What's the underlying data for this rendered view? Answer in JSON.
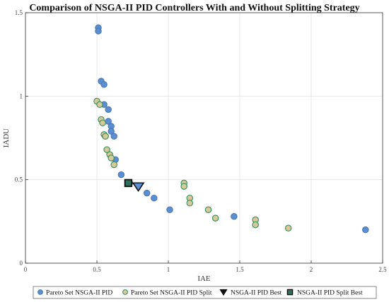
{
  "chart_data": {
    "type": "scatter",
    "title": "Comparison of NSGA-II PID Controllers With and Without Splitting Strategy",
    "xlabel": "IAE",
    "ylabel": "IADU",
    "xlim": [
      0,
      2.5
    ],
    "ylim": [
      0,
      1.5
    ],
    "xticks": [
      "0",
      "0.5",
      "1",
      "1.5",
      "2",
      "2.5"
    ],
    "yticks": [
      "0",
      "0.5",
      "1",
      "1.5"
    ],
    "grid": true,
    "legend_position": "bottom",
    "series": [
      {
        "name": "Pareto Set NSGA-II PID",
        "marker": "circle",
        "fill": "#5b8fd1",
        "stroke": "#4a78b5",
        "points": [
          [
            0.51,
            1.41
          ],
          [
            0.51,
            1.39
          ],
          [
            0.53,
            1.09
          ],
          [
            0.55,
            1.07
          ],
          [
            0.55,
            0.95
          ],
          [
            0.58,
            0.92
          ],
          [
            0.58,
            0.85
          ],
          [
            0.6,
            0.82
          ],
          [
            0.6,
            0.79
          ],
          [
            0.62,
            0.76
          ],
          [
            0.63,
            0.62
          ],
          [
            0.67,
            0.53
          ],
          [
            0.73,
            0.48
          ],
          [
            0.85,
            0.42
          ],
          [
            0.9,
            0.39
          ],
          [
            1.01,
            0.32
          ],
          [
            1.46,
            0.28
          ],
          [
            2.38,
            0.2
          ]
        ]
      },
      {
        "name": "Pareto Set NSGA-II PID Split",
        "marker": "circle",
        "fill": "#d6c99a",
        "stroke": "#2f8f5b",
        "points": [
          [
            0.5,
            0.97
          ],
          [
            0.52,
            0.95
          ],
          [
            0.53,
            0.86
          ],
          [
            0.54,
            0.84
          ],
          [
            0.55,
            0.77
          ],
          [
            0.56,
            0.76
          ],
          [
            0.57,
            0.68
          ],
          [
            0.59,
            0.65
          ],
          [
            0.6,
            0.63
          ],
          [
            0.62,
            0.59
          ],
          [
            1.11,
            0.48
          ],
          [
            1.11,
            0.46
          ],
          [
            1.15,
            0.39
          ],
          [
            1.15,
            0.36
          ],
          [
            1.28,
            0.32
          ],
          [
            1.33,
            0.27
          ],
          [
            1.61,
            0.26
          ],
          [
            1.61,
            0.23
          ],
          [
            1.84,
            0.21
          ]
        ]
      },
      {
        "name": "NSGA-II PID Best",
        "marker": "triangle-down",
        "fill": "#5b8fd1",
        "stroke": "#111111",
        "points": [
          [
            0.79,
            0.46
          ]
        ]
      },
      {
        "name": "NSGA-II PID Split Best",
        "marker": "square",
        "fill": "#2f6f5b",
        "stroke": "#111111",
        "points": [
          [
            0.72,
            0.48
          ]
        ]
      }
    ]
  }
}
